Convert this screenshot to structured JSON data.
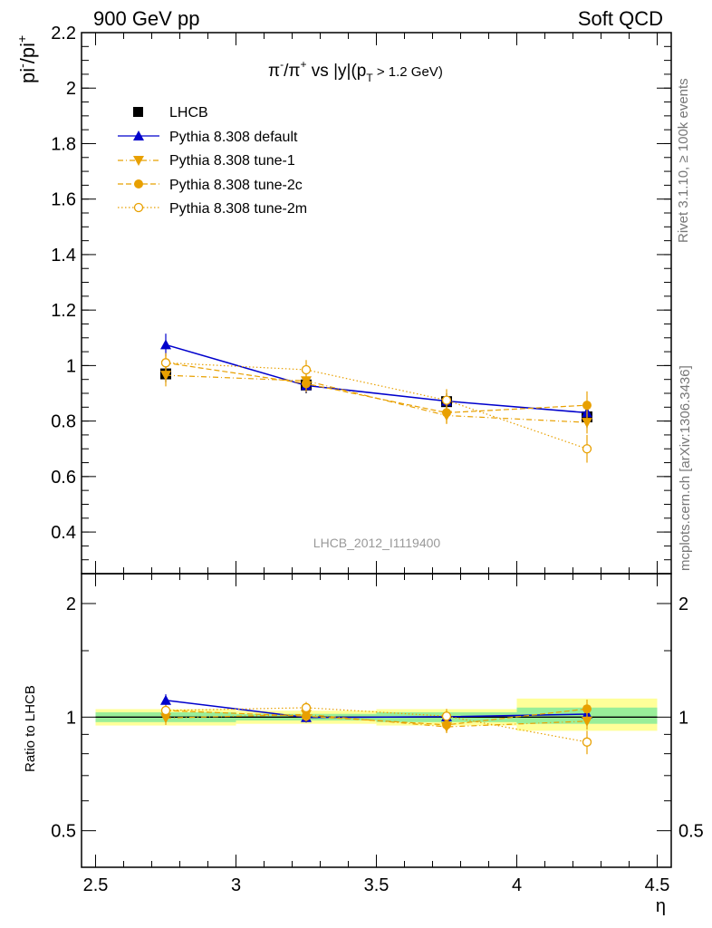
{
  "header": {
    "left": "900 GeV pp",
    "right": "Soft QCD"
  },
  "side_labels": {
    "rivet": "Rivet 3.1.10, ≥ 100k events",
    "mcplots": "mcplots.cern.ch [arXiv:1306.3436]"
  },
  "colors": {
    "lhcb": "#000000",
    "default": "#0000cc",
    "tunes": "#e8a000",
    "band_yellow": "#ffff99",
    "band_green": "#99ee99"
  },
  "chart_data": {
    "type": "line",
    "title": "π⁻/π⁺ vs |y|(p_T > 1.2 GeV)",
    "title_parts": {
      "main": "π",
      "sup1": "-",
      "mid": "/π",
      "sup2": "+",
      "rest": " vs |y|(p",
      "sub": "T",
      "tail": " > 1.2 GeV)"
    },
    "ylabel_parts": {
      "a": "pi",
      "sup1": "-",
      "b": "/pi",
      "sup2": "+"
    },
    "xlabel": "η",
    "ratio_ylabel": "Ratio to LHCB",
    "watermark": "LHCB_2012_I1119400",
    "xlim": [
      2.45,
      4.55
    ],
    "ylim": [
      0.25,
      2.2
    ],
    "ratio_ylim": [
      0.4,
      2.4
    ],
    "x_ticks": [
      "2.5",
      "3",
      "3.5",
      "4",
      "4.5"
    ],
    "x_tick_values": [
      2.5,
      3,
      3.5,
      4,
      4.5
    ],
    "y_ticks": [
      "0.4",
      "0.6",
      "0.8",
      "1",
      "1.2",
      "1.4",
      "1.6",
      "1.8",
      "2",
      "2.2"
    ],
    "y_tick_values": [
      0.4,
      0.6,
      0.8,
      1.0,
      1.2,
      1.4,
      1.6,
      1.8,
      2.0,
      2.2
    ],
    "ratio_ticks": [
      "0.5",
      "1",
      "2"
    ],
    "ratio_tick_values": [
      0.5,
      1,
      2
    ],
    "x": [
      2.75,
      3.25,
      3.75,
      4.25
    ],
    "bin_edges": [
      2.5,
      3.0,
      3.5,
      4.0,
      4.5
    ],
    "series": [
      {
        "name": "LHCB",
        "key": "lhcb",
        "values": [
          0.97,
          0.93,
          0.87,
          0.815
        ],
        "errors": [
          0.03,
          0.03,
          0.03,
          0.04
        ]
      },
      {
        "name": "Pythia 8.308 default",
        "key": "default",
        "values": [
          1.075,
          0.928,
          0.872,
          0.83
        ],
        "errors": [
          0.04,
          0.025,
          0.02,
          0.03
        ]
      },
      {
        "name": "Pythia 8.308 tune-1",
        "key": "tune1",
        "values": [
          0.965,
          0.945,
          0.82,
          0.795
        ],
        "errors": [
          0.04,
          0.03,
          0.03,
          0.04
        ]
      },
      {
        "name": "Pythia 8.308 tune-2c",
        "key": "tune2c",
        "values": [
          1.01,
          0.935,
          0.83,
          0.857
        ],
        "errors": [
          0.035,
          0.03,
          0.04,
          0.05
        ]
      },
      {
        "name": "Pythia 8.308 tune-2m",
        "key": "tune2m",
        "values": [
          1.01,
          0.985,
          0.875,
          0.7
        ],
        "errors": [
          0.03,
          0.035,
          0.04,
          0.05
        ]
      }
    ],
    "ratio_bands": {
      "yellow": [
        [
          0.95,
          1.05
        ],
        [
          0.96,
          1.04
        ],
        [
          0.95,
          1.05
        ],
        [
          0.92,
          1.12
        ]
      ],
      "green": [
        [
          0.97,
          1.03
        ],
        [
          0.98,
          1.02
        ],
        [
          0.97,
          1.03
        ],
        [
          0.96,
          1.06
        ]
      ]
    }
  }
}
